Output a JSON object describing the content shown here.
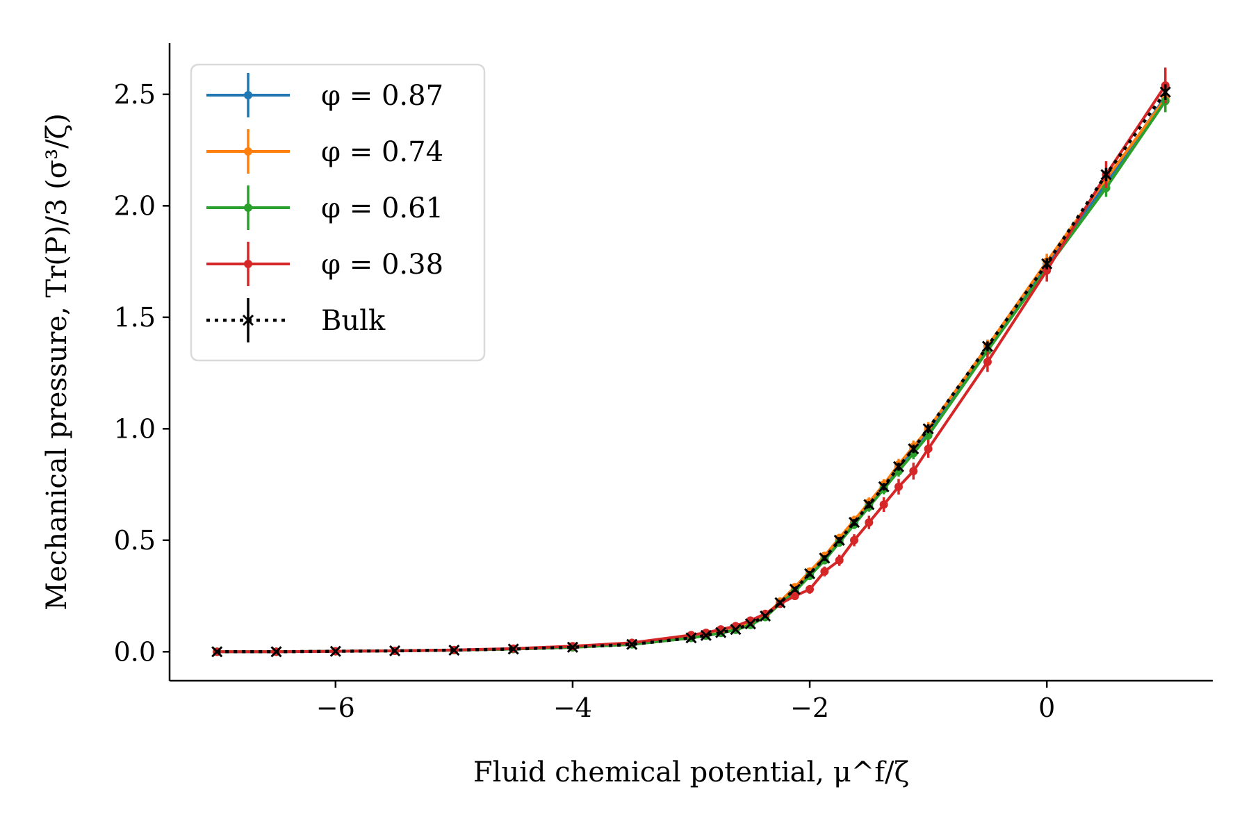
{
  "chart_data": {
    "type": "line",
    "title": "",
    "xlabel": "Fluid chemical potential, μ^f/ζ",
    "ylabel": "Mechanical pressure, Tr(P)/3 (σ³/ζ)",
    "xlim": [
      -7.4,
      1.4
    ],
    "ylim": [
      -0.13,
      2.73
    ],
    "xticks": [
      {
        "value": -6,
        "label": "−6"
      },
      {
        "value": -4,
        "label": "−4"
      },
      {
        "value": -2,
        "label": "−2"
      },
      {
        "value": 0,
        "label": "0"
      }
    ],
    "yticks": [
      {
        "value": 0.0,
        "label": "0.0"
      },
      {
        "value": 0.5,
        "label": "0.5"
      },
      {
        "value": 1.0,
        "label": "1.0"
      },
      {
        "value": 1.5,
        "label": "1.5"
      },
      {
        "value": 2.0,
        "label": "2.0"
      },
      {
        "value": 2.5,
        "label": "2.5"
      }
    ],
    "grid": false,
    "legend_position": "top-left",
    "x": [
      -7.0,
      -6.5,
      -6.0,
      -5.5,
      -5.0,
      -4.5,
      -4.0,
      -3.5,
      -3.0,
      -2.875,
      -2.75,
      -2.625,
      -2.5,
      -2.375,
      -2.25,
      -2.125,
      -2.0,
      -1.875,
      -1.75,
      -1.625,
      -1.5,
      -1.375,
      -1.25,
      -1.125,
      -1.0,
      -0.5,
      0.0,
      0.5,
      1.0
    ],
    "series": [
      {
        "name": "φ = 0.87",
        "color": "#1f77b4",
        "style": "solid",
        "marker": "dot",
        "values": [
          0.0,
          0.0,
          0.002,
          0.004,
          0.007,
          0.012,
          0.02,
          0.033,
          0.062,
          0.073,
          0.085,
          0.1,
          0.125,
          0.16,
          0.22,
          0.28,
          0.35,
          0.42,
          0.5,
          0.58,
          0.66,
          0.74,
          0.83,
          0.91,
          0.99,
          1.37,
          1.74,
          2.1,
          2.49
        ],
        "errors": [
          0.005,
          0.005,
          0.005,
          0.005,
          0.005,
          0.005,
          0.005,
          0.006,
          0.008,
          0.008,
          0.008,
          0.009,
          0.01,
          0.012,
          0.013,
          0.014,
          0.016,
          0.018,
          0.019,
          0.02,
          0.022,
          0.024,
          0.025,
          0.027,
          0.03,
          0.03,
          0.035,
          0.04,
          0.05
        ]
      },
      {
        "name": "φ = 0.74",
        "color": "#ff7f0e",
        "style": "solid",
        "marker": "dot",
        "values": [
          0.0,
          0.0,
          0.002,
          0.004,
          0.007,
          0.012,
          0.02,
          0.033,
          0.062,
          0.073,
          0.086,
          0.102,
          0.127,
          0.163,
          0.225,
          0.29,
          0.36,
          0.43,
          0.51,
          0.59,
          0.67,
          0.75,
          0.84,
          0.92,
          1.0,
          1.37,
          1.75,
          2.12,
          2.48
        ],
        "errors": [
          0.005,
          0.005,
          0.005,
          0.005,
          0.005,
          0.005,
          0.005,
          0.006,
          0.008,
          0.008,
          0.008,
          0.009,
          0.01,
          0.012,
          0.013,
          0.014,
          0.016,
          0.018,
          0.019,
          0.02,
          0.022,
          0.024,
          0.025,
          0.027,
          0.03,
          0.03,
          0.035,
          0.04,
          0.05
        ]
      },
      {
        "name": "φ = 0.61",
        "color": "#2ca02c",
        "style": "solid",
        "marker": "dot",
        "values": [
          0.0,
          0.0,
          0.002,
          0.004,
          0.007,
          0.012,
          0.02,
          0.033,
          0.062,
          0.072,
          0.084,
          0.098,
          0.12,
          0.155,
          0.215,
          0.27,
          0.34,
          0.41,
          0.49,
          0.57,
          0.65,
          0.73,
          0.81,
          0.89,
          0.97,
          1.35,
          1.72,
          2.08,
          2.47
        ],
        "errors": [
          0.005,
          0.005,
          0.005,
          0.005,
          0.005,
          0.005,
          0.005,
          0.006,
          0.008,
          0.008,
          0.008,
          0.009,
          0.01,
          0.012,
          0.013,
          0.014,
          0.016,
          0.018,
          0.019,
          0.02,
          0.022,
          0.024,
          0.025,
          0.027,
          0.03,
          0.03,
          0.035,
          0.04,
          0.05
        ]
      },
      {
        "name": "φ = 0.38",
        "color": "#d62728",
        "style": "solid",
        "marker": "dot",
        "values": [
          0.0,
          0.0,
          0.002,
          0.004,
          0.008,
          0.014,
          0.025,
          0.04,
          0.075,
          0.085,
          0.1,
          0.115,
          0.14,
          0.17,
          0.215,
          0.25,
          0.28,
          0.36,
          0.41,
          0.5,
          0.58,
          0.66,
          0.74,
          0.81,
          0.91,
          1.3,
          1.71,
          2.14,
          2.54
        ],
        "errors": [
          0.005,
          0.005,
          0.005,
          0.005,
          0.005,
          0.006,
          0.006,
          0.008,
          0.01,
          0.01,
          0.011,
          0.012,
          0.013,
          0.014,
          0.016,
          0.018,
          0.02,
          0.022,
          0.025,
          0.027,
          0.03,
          0.033,
          0.035,
          0.038,
          0.04,
          0.045,
          0.05,
          0.06,
          0.08
        ]
      },
      {
        "name": "Bulk",
        "color": "#000000",
        "style": "dotted",
        "marker": "x",
        "values": [
          0.0,
          0.0,
          0.002,
          0.004,
          0.007,
          0.012,
          0.02,
          0.033,
          0.062,
          0.073,
          0.086,
          0.1,
          0.125,
          0.16,
          0.22,
          0.28,
          0.35,
          0.42,
          0.5,
          0.58,
          0.66,
          0.74,
          0.83,
          0.91,
          1.0,
          1.37,
          1.74,
          2.14,
          2.51
        ],
        "errors": [
          0.004,
          0.004,
          0.004,
          0.004,
          0.004,
          0.004,
          0.004,
          0.005,
          0.006,
          0.006,
          0.006,
          0.007,
          0.008,
          0.009,
          0.01,
          0.011,
          0.012,
          0.013,
          0.014,
          0.015,
          0.016,
          0.017,
          0.018,
          0.019,
          0.02,
          0.022,
          0.025,
          0.03,
          0.035
        ]
      }
    ]
  }
}
